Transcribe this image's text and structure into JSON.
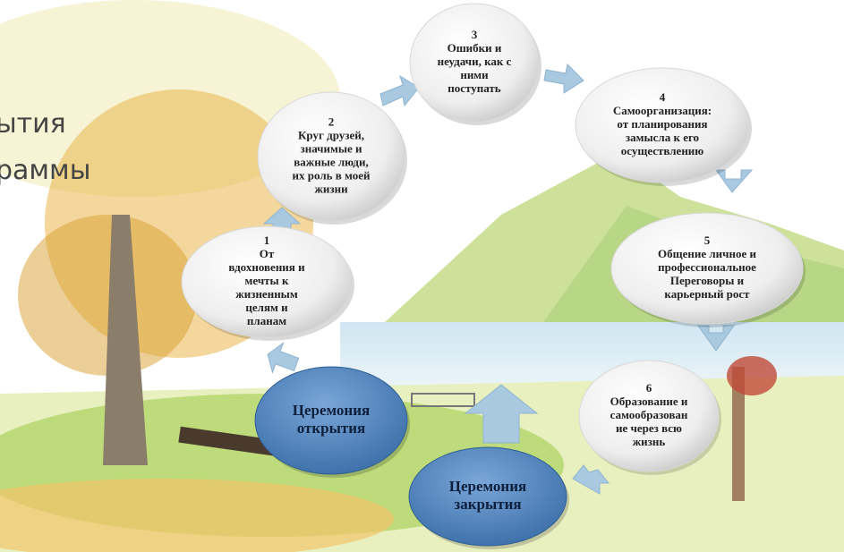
{
  "title_fragments": [
    "ытия",
    "раммы"
  ],
  "nodes": [
    {
      "number": "1",
      "lines": [
        "От",
        "вдохновения и",
        "мечты к",
        "жизненным",
        "целям и",
        "планам"
      ]
    },
    {
      "number": "2",
      "lines": [
        "Круг друзей,",
        "значимые и",
        "важные люди,",
        "их роль в моей",
        "жизни"
      ]
    },
    {
      "number": "3",
      "lines": [
        "Ошибки и",
        "неудачи, как с",
        "ними",
        "поступать"
      ]
    },
    {
      "number": "4",
      "lines": [
        "Самоорганизация:",
        "от планирования",
        "замысла к его",
        "осуществлению"
      ]
    },
    {
      "number": "5",
      "lines": [
        "Общение личное и",
        "профессиональное",
        "Переговоры и",
        "карьерный рост"
      ]
    },
    {
      "number": "6",
      "lines": [
        "Образование и",
        "самообразован",
        "ие через всю",
        "жизнь"
      ]
    }
  ],
  "ceremonies": [
    {
      "lines": [
        "Церемония",
        "открытия"
      ]
    },
    {
      "lines": [
        "Церемония",
        "закрытия"
      ]
    }
  ]
}
